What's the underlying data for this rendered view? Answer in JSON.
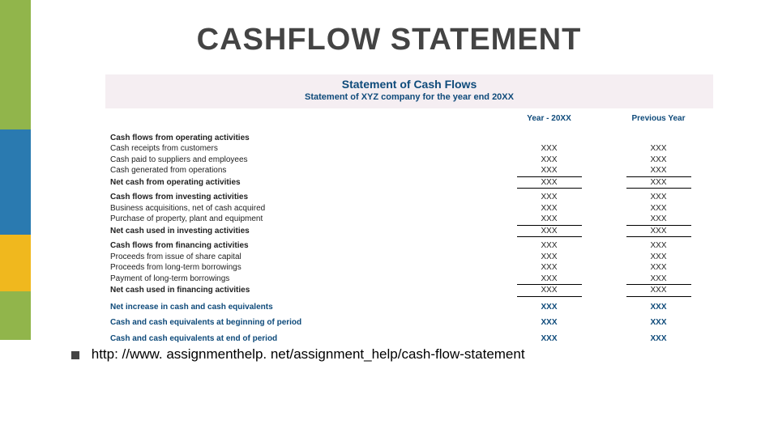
{
  "heading": "CASHFLOW STATEMENT",
  "statement": {
    "header_band_bg": "#f5eef2",
    "accent_color": "#0e4a7a",
    "title": "Statement of Cash Flows",
    "subtitle": "Statement of XYZ company for the year end 20XX",
    "col1": "Year - 20XX",
    "col2": "Previous Year",
    "sections": [
      {
        "heading": "Cash flows from operating activities",
        "heading_v1": "",
        "heading_v2": "",
        "rows": [
          {
            "label": "Cash receipts from customers",
            "v1": "XXX",
            "v2": "XXX"
          },
          {
            "label": "Cash paid to suppliers and employees",
            "v1": "XXX",
            "v2": "XXX"
          },
          {
            "label": "Cash generated from operations",
            "v1": "XXX",
            "v2": "XXX"
          }
        ],
        "total": {
          "label": "Net cash from operating activities",
          "v1": "XXX",
          "v2": "XXX"
        }
      },
      {
        "heading": "Cash flows from investing activities",
        "heading_v1": "XXX",
        "heading_v2": "XXX",
        "rows": [
          {
            "label": "Business acquisitions, net of cash acquired",
            "v1": "XXX",
            "v2": "XXX"
          },
          {
            "label": "Purchase of property, plant and equipment",
            "v1": "XXX",
            "v2": "XXX"
          }
        ],
        "total": {
          "label": "Net cash used in investing activities",
          "v1": "XXX",
          "v2": "XXX"
        }
      },
      {
        "heading": "Cash flows from financing activities",
        "heading_v1": "XXX",
        "heading_v2": "XXX",
        "rows": [
          {
            "label": "Proceeds from issue of share capital",
            "v1": "XXX",
            "v2": "XXX"
          },
          {
            "label": "Proceeds from long-term borrowings",
            "v1": "XXX",
            "v2": "XXX"
          },
          {
            "label": "Payment of long-term borrowings",
            "v1": "XXX",
            "v2": "XXX"
          }
        ],
        "total": {
          "label": "Net cash used in financing activities",
          "v1": "XXX",
          "v2": "XXX"
        }
      }
    ],
    "summary": [
      {
        "label": "Net increase in cash and cash equivalents",
        "v1": "XXX",
        "v2": "XXX"
      },
      {
        "label": "Cash and cash equivalents at beginning of period",
        "v1": "XXX",
        "v2": "XXX"
      },
      {
        "label": "Cash and cash equivalents at end of period",
        "v1": "XXX",
        "v2": "XXX"
      }
    ]
  },
  "source": "http: //www. assignmenthelp. net/assignment_help/cash-flow-statement",
  "sidebar_colors": {
    "green": "#91b54b",
    "blue": "#2a7ab0",
    "yellow": "#f0b81e"
  }
}
